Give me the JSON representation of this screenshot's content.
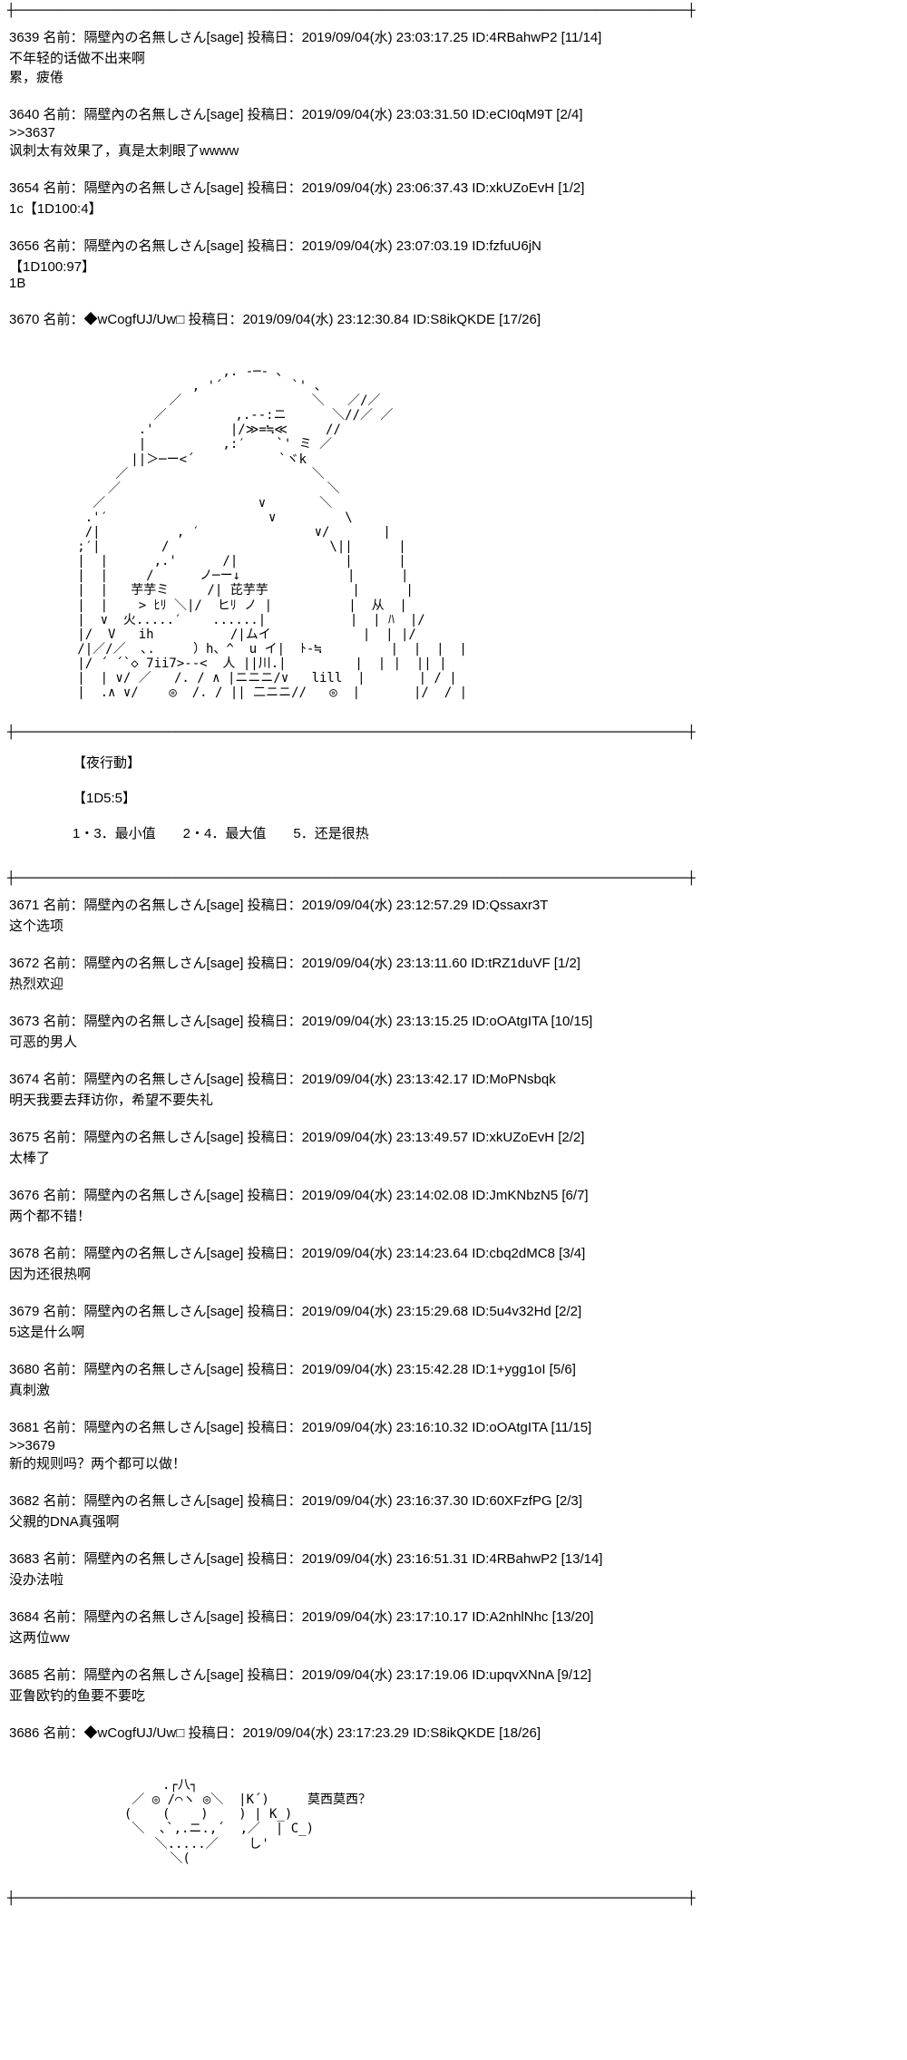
{
  "divider": "┼────────────────────────────────────────────────────────────────────────────────────────┼",
  "posts": [
    {
      "num": "3639",
      "name": "隔壁內の名無しさん",
      "tag": "[sage]",
      "date": "2019/09/04(水) 23:03:17.25",
      "id": "ID:4RBahwP2",
      "count": "[11/14]",
      "body": "不年轻的话做不出来啊\n累，疲倦"
    },
    {
      "num": "3640",
      "name": "隔壁內の名無しさん",
      "tag": "[sage]",
      "date": "2019/09/04(水) 23:03:31.50",
      "id": "ID:eCI0qM9T",
      "count": "[2/4]",
      "reply": ">>3637",
      "body": "讽刺太有效果了，真是太刺眼了wwww"
    },
    {
      "num": "3654",
      "name": "隔壁內の名無しさん",
      "tag": "[sage]",
      "date": "2019/09/04(水) 23:06:37.43",
      "id": "ID:xkUZoEvH",
      "count": "[1/2]",
      "body": "1c【1D100:4】"
    },
    {
      "num": "3656",
      "name": "隔壁內の名無しさん",
      "tag": "[sage]",
      "date": "2019/09/04(水) 23:07:03.19",
      "id": "ID:fzfuU6jN",
      "count": "",
      "body": "【1D100:97】\n1B"
    },
    {
      "num": "3670",
      "name": "◆wCogfUJ/Uw",
      "tag": "□",
      "date": "2019/09/04(水) 23:12:30.84",
      "id": "ID:S8ikQKDE",
      "count": "[17/26]",
      "body": ""
    }
  ],
  "ascii_art_1": "                      ,. -─- 、\n                  , '´         `' 、\n               ／                 ＼   ／/／\n             ／         ,.--:ニ      ＼//／ ／\n           .'          |/≫=≒≪     //\n           |          ,:′    `' ミ ／\n          ||＞─ー<´           `ヾk\n        ／                        ＼\n       ／                           ＼\n     ／                    ∨       ＼\n    .'′                     ∨         \\\n    /|          , ′               ∨/       |\n   ;′|        /                     \\||      |\n   |  |      ,.'      /|              |      |\n   |  |     /      ノ─ー↓              |      |\n   |  |   芋芋ミ     /| 芘芋芋           |      |\n   |  |    > ﾋﾘ ＼|/  ヒﾘ ノ |          |  从  |\n   |  ∨  火.....′    ......|           |  | ﾊ  |/\n   |/  V   ih          /|ムイ            |  | |/\n   /|／/／  ､.     ）h、^  u イ|  ﾄ-≒         |  |  |  |\n   |/ ´ ´`◇ 7ii7>--<  人 ||川.|         |  | |  || |\n   |  | ∨/ ／   /. / ∧ |ニニニ/∨   lill  |       | / |\n   |  .∧ ∨/    ◎  /. / || 二ニニ//   ◎  |       |/  / |",
  "night_block": {
    "l1": "【夜行動】",
    "l2": "【1D5:5】",
    "l3": "1・3．最小值　　2・4．最大值　　5．还是很热"
  },
  "posts2": [
    {
      "num": "3671",
      "name": "隔壁內の名無しさん",
      "tag": "[sage]",
      "date": "2019/09/04(水) 23:12:57.29",
      "id": "ID:Qssaxr3T",
      "count": "",
      "body": "这个选项"
    },
    {
      "num": "3672",
      "name": "隔壁內の名無しさん",
      "tag": "[sage]",
      "date": "2019/09/04(水) 23:13:11.60",
      "id": "ID:tRZ1duVF",
      "count": "[1/2]",
      "body": "热烈欢迎"
    },
    {
      "num": "3673",
      "name": "隔壁內の名無しさん",
      "tag": "[sage]",
      "date": "2019/09/04(水) 23:13:15.25",
      "id": "ID:oOAtgITA",
      "count": "[10/15]",
      "body": "可恶的男人"
    },
    {
      "num": "3674",
      "name": "隔壁內の名無しさん",
      "tag": "[sage]",
      "date": "2019/09/04(水) 23:13:42.17",
      "id": "ID:MoPNsbqk",
      "count": "",
      "body": "明天我要去拜访你，希望不要失礼"
    },
    {
      "num": "3675",
      "name": "隔壁內の名無しさん",
      "tag": "[sage]",
      "date": "2019/09/04(水) 23:13:49.57",
      "id": "ID:xkUZoEvH",
      "count": "[2/2]",
      "body": "太棒了"
    },
    {
      "num": "3676",
      "name": "隔壁內の名無しさん",
      "tag": "[sage]",
      "date": "2019/09/04(水) 23:14:02.08",
      "id": "ID:JmKNbzN5",
      "count": "[6/7]",
      "body": "两个都不错！"
    },
    {
      "num": "3678",
      "name": "隔壁內の名無しさん",
      "tag": "[sage]",
      "date": "2019/09/04(水) 23:14:23.64",
      "id": "ID:cbq2dMC8",
      "count": "[3/4]",
      "body": "因为还很热啊"
    },
    {
      "num": "3679",
      "name": "隔壁內の名無しさん",
      "tag": "[sage]",
      "date": "2019/09/04(水) 23:15:29.68",
      "id": "ID:5u4v32Hd",
      "count": "[2/2]",
      "body": "5这是什么啊"
    },
    {
      "num": "3680",
      "name": "隔壁內の名無しさん",
      "tag": "[sage]",
      "date": "2019/09/04(水) 23:15:42.28",
      "id": "ID:1+ygg1oI",
      "count": "[5/6]",
      "body": "真刺激"
    },
    {
      "num": "3681",
      "name": "隔壁內の名無しさん",
      "tag": "[sage]",
      "date": "2019/09/04(水) 23:16:10.32",
      "id": "ID:oOAtgITA",
      "count": "[11/15]",
      "reply": ">>3679",
      "body": "新的规则吗？两个都可以做！"
    },
    {
      "num": "3682",
      "name": "隔壁內の名無しさん",
      "tag": "[sage]",
      "date": "2019/09/04(水) 23:16:37.30",
      "id": "ID:60XFzfPG",
      "count": "[2/3]",
      "body": "父親的DNA真强啊"
    },
    {
      "num": "3683",
      "name": "隔壁內の名無しさん",
      "tag": "[sage]",
      "date": "2019/09/04(水) 23:16:51.31",
      "id": "ID:4RBahwP2",
      "count": "[13/14]",
      "body": "没办法啦"
    },
    {
      "num": "3684",
      "name": "隔壁內の名無しさん",
      "tag": "[sage]",
      "date": "2019/09/04(水) 23:17:10.17",
      "id": "ID:A2nhlNhc",
      "count": "[13/20]",
      "body": "这两位ww"
    },
    {
      "num": "3685",
      "name": "隔壁內の名無しさん",
      "tag": "[sage]",
      "date": "2019/09/04(水) 23:17:19.06",
      "id": "ID:upqvXNnA",
      "count": "[9/12]",
      "body": "亚鲁欧钓的鱼要不要吃"
    },
    {
      "num": "3686",
      "name": "◆wCogfUJ/Uw",
      "tag": "□",
      "date": "2019/09/04(水) 23:17:23.29",
      "id": "ID:S8ikQKDE",
      "count": "[18/26]",
      "body": ""
    }
  ],
  "ascii_art_2": "       .┌八┐\n   ／ ◎ /⌒ヽ ◎＼  |K´)     莫西莫西？\n  (    (    )    ) | K_)\n   ＼  ､`,.ニ.,´  ,／  | C_)\n      ＼.....／    し'\n        ＼(",
  "labels": {
    "name_prefix": "名前：",
    "date_prefix": "投稿日："
  }
}
